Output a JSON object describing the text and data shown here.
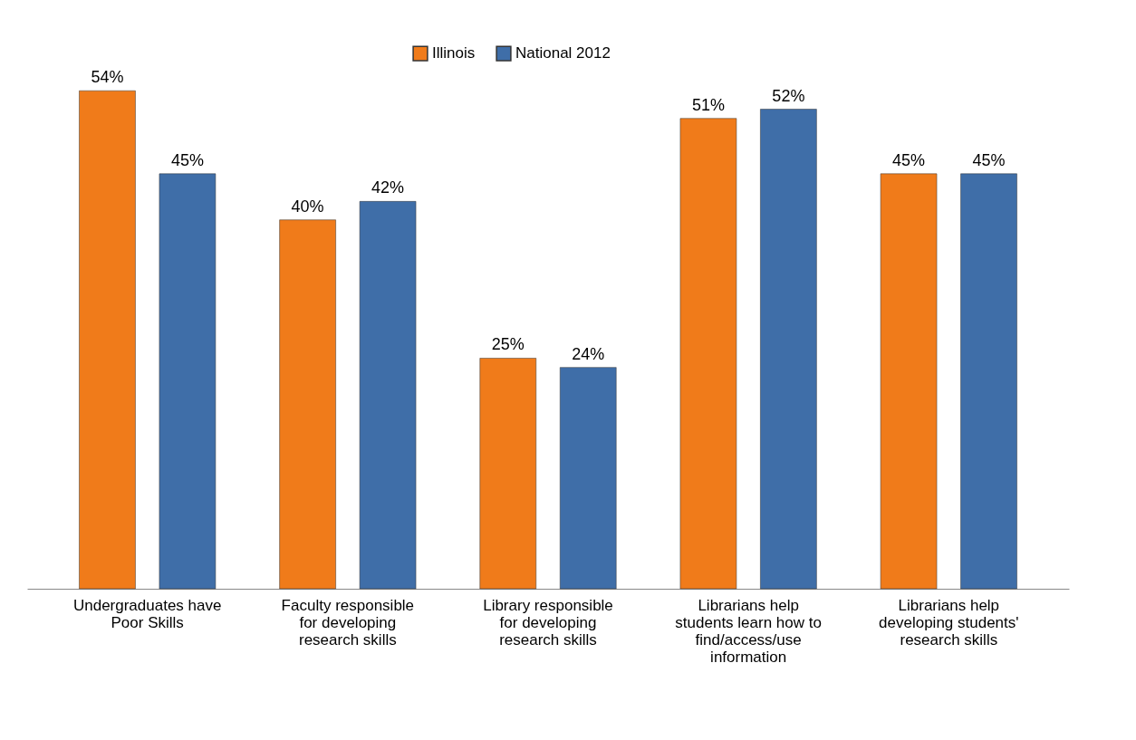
{
  "chart_data": {
    "type": "bar",
    "categories": [
      "Undergraduates have Poor Skills",
      "Faculty responsible for developing research skills",
      "Library responsible for developing research skills",
      "Librarians help students learn how to find/access/use information",
      "Librarians help developing students' research skills"
    ],
    "series": [
      {
        "name": "Illinois",
        "color": "#f07b1a",
        "values": [
          54,
          40,
          25,
          51,
          45
        ],
        "value_labels": [
          "54%",
          "40%",
          "25%",
          "51%",
          "45%"
        ]
      },
      {
        "name": "National 2012",
        "color": "#3f6ea8",
        "values": [
          45,
          42,
          24,
          52,
          45
        ],
        "value_labels": [
          "45%",
          "42%",
          "24%",
          "52%",
          "45%"
        ]
      }
    ],
    "legend": "top",
    "grid": false
  }
}
